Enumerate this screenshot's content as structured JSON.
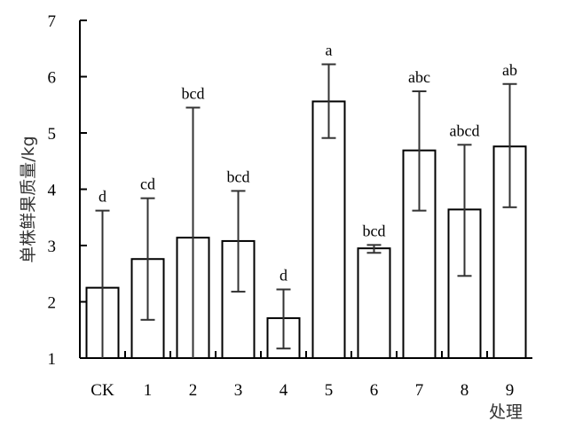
{
  "chart_data": {
    "type": "bar",
    "title": "",
    "ylabel": "单株鲜果质量/kg",
    "xlabel": "处理",
    "ylim": [
      1,
      7
    ],
    "yticks": [
      1,
      2,
      3,
      4,
      5,
      6,
      7
    ],
    "grid": false,
    "legend": "none",
    "categories": [
      "CK",
      "1",
      "2",
      "3",
      "4",
      "5",
      "6",
      "7",
      "8",
      "9"
    ],
    "values": [
      2.25,
      2.76,
      3.14,
      3.08,
      1.71,
      5.56,
      2.95,
      4.69,
      3.64,
      4.76
    ],
    "error_low": [
      0.0,
      1.68,
      0.0,
      2.18,
      1.17,
      4.91,
      2.87,
      3.62,
      2.46,
      3.68
    ],
    "error_high": [
      3.62,
      3.84,
      5.45,
      3.97,
      2.22,
      6.22,
      3.01,
      5.74,
      4.79,
      5.87
    ],
    "significance": [
      "d",
      "cd",
      "bcd",
      "bcd",
      "d",
      "a",
      "bcd",
      "abc",
      "abcd",
      "ab"
    ],
    "colors": {
      "bar_fill": "#ffffff",
      "bar_stroke": "#000000",
      "axis": "#000000",
      "error_bar": "#333333"
    }
  }
}
